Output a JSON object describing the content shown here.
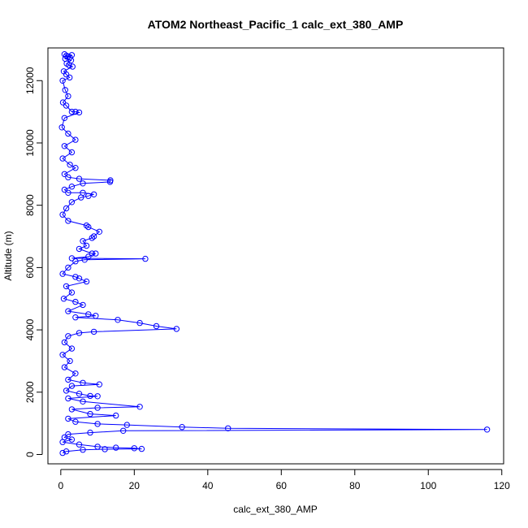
{
  "chart_data": {
    "type": "scatter",
    "title": "ATOM2 Northeast_Pacific_1 calc_ext_380_AMP",
    "xlabel": "calc_ext_380_AMP",
    "ylabel": "Altitude (m)",
    "xlim": [
      -3.5,
      120.5
    ],
    "ylim": [
      -300,
      13050
    ],
    "xticks": [
      0,
      20,
      40,
      60,
      80,
      100,
      120
    ],
    "yticks": [
      0,
      2000,
      4000,
      6000,
      8000,
      10000,
      12000
    ],
    "grid": false,
    "marker": "open-circle",
    "connect_points": true,
    "series_color": "#0000ff",
    "series": [
      {
        "values": [
          [
            1.0,
            12850
          ],
          [
            1.5,
            12800
          ],
          [
            2.0,
            12780
          ],
          [
            2.5,
            12750
          ],
          [
            3.0,
            12820
          ],
          [
            1.2,
            12700
          ],
          [
            2.8,
            12650
          ],
          [
            1.6,
            12550
          ],
          [
            2.2,
            12500
          ],
          [
            3.2,
            12450
          ],
          [
            0.8,
            12300
          ],
          [
            1.5,
            12200
          ],
          [
            2.4,
            12100
          ],
          [
            0.5,
            12000
          ],
          [
            1.2,
            11700
          ],
          [
            2.0,
            11500
          ],
          [
            0.6,
            11300
          ],
          [
            1.5,
            11200
          ],
          [
            3.0,
            11000
          ],
          [
            4.0,
            11000
          ],
          [
            5.0,
            10980
          ],
          [
            1.0,
            10800
          ],
          [
            0.3,
            10500
          ],
          [
            2.0,
            10300
          ],
          [
            4.0,
            10100
          ],
          [
            1.0,
            9900
          ],
          [
            3.0,
            9700
          ],
          [
            0.5,
            9500
          ],
          [
            2.5,
            9300
          ],
          [
            4.0,
            9200
          ],
          [
            1.0,
            9000
          ],
          [
            2.0,
            8900
          ],
          [
            5.0,
            8850
          ],
          [
            13.5,
            8800
          ],
          [
            13.4,
            8750
          ],
          [
            6.0,
            8700
          ],
          [
            3.0,
            8600
          ],
          [
            1.0,
            8500
          ],
          [
            2.0,
            8400
          ],
          [
            6.0,
            8400
          ],
          [
            9.0,
            8350
          ],
          [
            7.5,
            8300
          ],
          [
            5.5,
            8250
          ],
          [
            3.0,
            8100
          ],
          [
            1.5,
            7900
          ],
          [
            0.5,
            7700
          ],
          [
            2.0,
            7500
          ],
          [
            7.0,
            7350
          ],
          [
            7.5,
            7300
          ],
          [
            10.5,
            7150
          ],
          [
            9.0,
            7000
          ],
          [
            8.5,
            6950
          ],
          [
            6.0,
            6850
          ],
          [
            7.0,
            6700
          ],
          [
            5.0,
            6600
          ],
          [
            8.5,
            6450
          ],
          [
            9.5,
            6450
          ],
          [
            7.5,
            6350
          ],
          [
            3.0,
            6300
          ],
          [
            23.0,
            6280
          ],
          [
            6.5,
            6250
          ],
          [
            4.0,
            6200
          ],
          [
            2.0,
            6000
          ],
          [
            0.5,
            5800
          ],
          [
            4.0,
            5700
          ],
          [
            5.0,
            5650
          ],
          [
            7.0,
            5550
          ],
          [
            1.5,
            5400
          ],
          [
            3.0,
            5200
          ],
          [
            0.8,
            5000
          ],
          [
            4.0,
            4900
          ],
          [
            6.0,
            4800
          ],
          [
            2.0,
            4600
          ],
          [
            7.5,
            4500
          ],
          [
            9.5,
            4450
          ],
          [
            4.0,
            4400
          ],
          [
            15.5,
            4320
          ],
          [
            21.5,
            4220
          ],
          [
            26.0,
            4120
          ],
          [
            31.5,
            4030
          ],
          [
            9.0,
            3940
          ],
          [
            5.0,
            3900
          ],
          [
            2.0,
            3800
          ],
          [
            1.0,
            3600
          ],
          [
            3.0,
            3400
          ],
          [
            0.5,
            3200
          ],
          [
            2.5,
            3000
          ],
          [
            1.0,
            2800
          ],
          [
            4.0,
            2600
          ],
          [
            2.0,
            2400
          ],
          [
            6.0,
            2300
          ],
          [
            10.5,
            2250
          ],
          [
            3.0,
            2200
          ],
          [
            1.5,
            2050
          ],
          [
            5.0,
            1950
          ],
          [
            8.0,
            1880
          ],
          [
            10.0,
            1870
          ],
          [
            2.0,
            1800
          ],
          [
            6.0,
            1700
          ],
          [
            21.5,
            1530
          ],
          [
            10.0,
            1500
          ],
          [
            3.0,
            1450
          ],
          [
            8.0,
            1300
          ],
          [
            15.0,
            1250
          ],
          [
            2.0,
            1150
          ],
          [
            4.0,
            1050
          ],
          [
            10.0,
            980
          ],
          [
            18.0,
            950
          ],
          [
            33.0,
            880
          ],
          [
            45.5,
            840
          ],
          [
            116.0,
            800
          ],
          [
            17.0,
            760
          ],
          [
            8.0,
            700
          ],
          [
            2.0,
            650
          ],
          [
            1.0,
            550
          ],
          [
            3.0,
            480
          ],
          [
            0.5,
            400
          ],
          [
            5.0,
            320
          ],
          [
            10.0,
            250
          ],
          [
            15.0,
            220
          ],
          [
            20.0,
            200
          ],
          [
            22.0,
            180
          ],
          [
            12.0,
            170
          ],
          [
            6.0,
            150
          ],
          [
            1.5,
            100
          ],
          [
            0.5,
            50
          ]
        ]
      }
    ]
  }
}
